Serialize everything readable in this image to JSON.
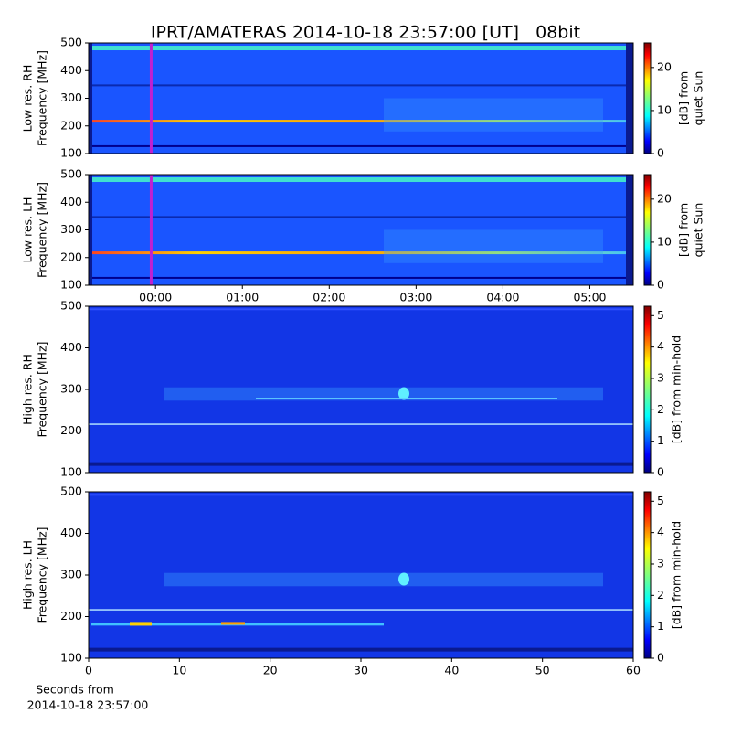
{
  "chart_data": [
    {
      "type": "heatmap",
      "title": "IPRT/AMATERAS 2014-10-18 23:57:00 [UT]   08bit",
      "ylabel": [
        "Low res. RH",
        "Frequency [MHz]"
      ],
      "xlim": [
        -0.77,
        5.5
      ],
      "ylim": [
        100,
        500
      ],
      "yticks": [
        100,
        200,
        300,
        400,
        500
      ],
      "marker": -0.05,
      "marker_color": "#c020d0",
      "clim": [
        0,
        25.7
      ],
      "cticks": [
        0,
        10,
        20
      ],
      "clabel": [
        "[dB] from",
        "quiet Sun"
      ]
    },
    {
      "type": "heatmap",
      "ylabel": [
        "Low res. LH",
        "Frequency [MHz]"
      ],
      "xlim": [
        -0.77,
        5.5
      ],
      "ylim": [
        100,
        500
      ],
      "yticks": [
        100,
        200,
        300,
        400,
        500
      ],
      "xticks": [
        {
          "value": 0,
          "label": "00:00"
        },
        {
          "value": 1,
          "label": "01:00"
        },
        {
          "value": 2,
          "label": "02:00"
        },
        {
          "value": 3,
          "label": "03:00"
        },
        {
          "value": 4,
          "label": "04:00"
        },
        {
          "value": 5,
          "label": "05:00"
        }
      ],
      "marker": -0.05,
      "marker_color": "#c020d0",
      "clim": [
        0,
        25.7
      ],
      "cticks": [
        0,
        10,
        20
      ],
      "clabel": [
        "[dB] from",
        "quiet Sun"
      ]
    },
    {
      "type": "heatmap",
      "ylabel": [
        "High res. RH",
        "Frequency [MHz]"
      ],
      "xlim": [
        0,
        60
      ],
      "ylim": [
        100,
        500
      ],
      "yticks": [
        100,
        200,
        300,
        400,
        500
      ],
      "clim": [
        0,
        5.3
      ],
      "cticks": [
        0,
        1,
        2,
        3,
        4,
        5
      ],
      "clabel": [
        "[dB] from min-hold"
      ]
    },
    {
      "type": "heatmap",
      "ylabel": [
        "High res. LH",
        "Frequency [MHz]"
      ],
      "xlim": [
        0,
        60
      ],
      "ylim": [
        100,
        500
      ],
      "yticks": [
        100,
        200,
        300,
        400,
        500
      ],
      "xticks": [
        0,
        10,
        20,
        30,
        40,
        50,
        60
      ],
      "xlabel": [
        "Seconds from",
        "2014-10-18 23:57:00"
      ],
      "clim": [
        0,
        5.3
      ],
      "cticks": [
        0,
        1,
        2,
        3,
        4,
        5
      ],
      "clabel": [
        "[dB] from min-hold"
      ]
    }
  ]
}
